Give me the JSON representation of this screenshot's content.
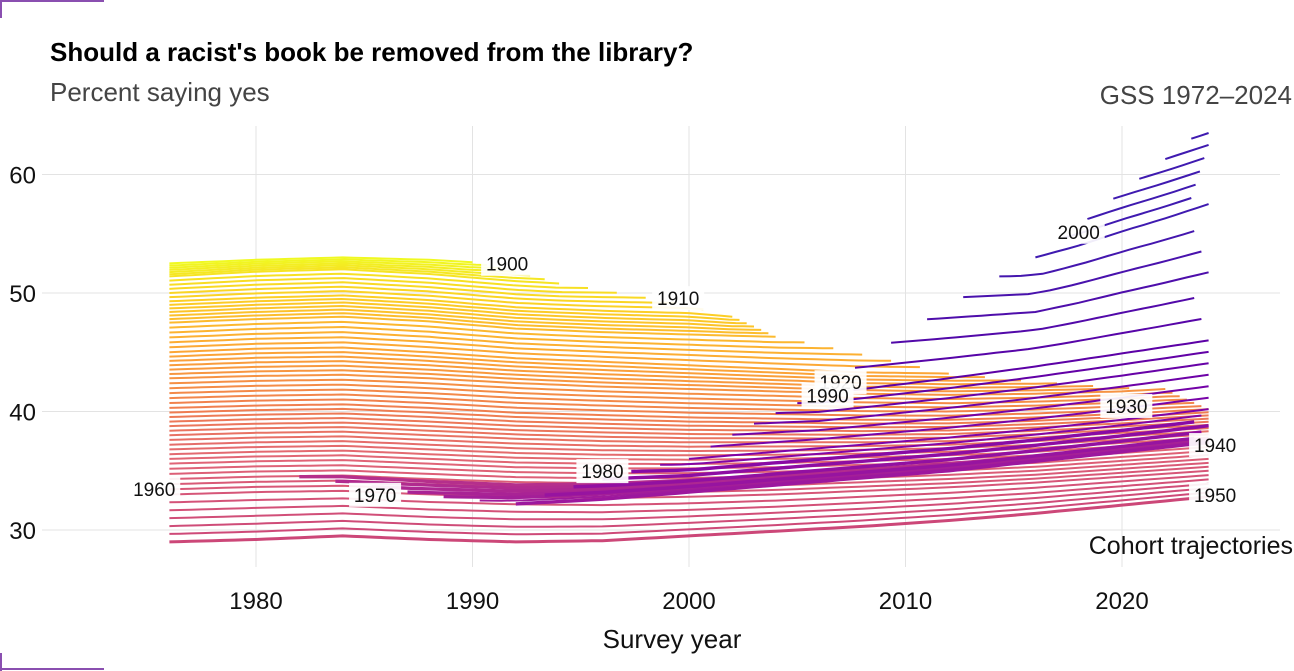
{
  "chart_data": {
    "type": "line",
    "title": "Should a racist's book be removed from the library?",
    "subtitle": "Percent saying yes",
    "source_note": "GSS 1972–2024",
    "caption": "Cohort trajectories",
    "xlabel": "Survey year",
    "ylabel": "",
    "xlim": [
      1972,
      2026
    ],
    "ylim": [
      26,
      64
    ],
    "x_ticks": [
      1980,
      1990,
      2000,
      2010,
      2020
    ],
    "y_ticks": [
      30,
      40,
      50,
      60
    ],
    "grid": true,
    "legend": "none",
    "colors": {
      "yellow": "#f0f921",
      "orange": "#fdb42f",
      "salmon": "#f08c5a",
      "pink": "#e06477",
      "magenta": "#b52f8c",
      "purple": "#7e03a8",
      "indigo": "#3f1ab0"
    },
    "cohort_labels": [
      {
        "text": "1900",
        "x": 1991.6,
        "y": 52.3
      },
      {
        "text": "1910",
        "x": 1999.5,
        "y": 49.4
      },
      {
        "text": "1920",
        "x": 2007.0,
        "y": 42.3
      },
      {
        "text": "1930",
        "x": 2020.2,
        "y": 40.3
      },
      {
        "text": "1940",
        "x": 2024.3,
        "y": 37.0
      },
      {
        "text": "1950",
        "x": 2024.3,
        "y": 32.8
      },
      {
        "text": "1960",
        "x": 1975.3,
        "y": 33.3
      },
      {
        "text": "1970",
        "x": 1985.5,
        "y": 32.8
      },
      {
        "text": "1980",
        "x": 1996.0,
        "y": 34.8
      },
      {
        "text": "1990",
        "x": 2006.4,
        "y": 41.2
      },
      {
        "text": "2000",
        "x": 2018.0,
        "y": 55.0
      }
    ],
    "series": [
      {
        "cohort": 1900,
        "x": [
          1976,
          1980,
          1984,
          1988,
          1990
        ],
        "y": [
          52.5,
          52.8,
          53.0,
          52.8,
          52.6
        ]
      },
      {
        "cohort": 1905,
        "x": [
          1976,
          1980,
          1984,
          1988,
          1992,
          1994
        ],
        "y": [
          51.4,
          51.8,
          52.0,
          51.6,
          51.0,
          50.8
        ]
      },
      {
        "cohort": 1910,
        "x": [
          1976,
          1980,
          1984,
          1988,
          1992,
          1996,
          2000,
          2002
        ],
        "y": [
          49.3,
          49.6,
          49.8,
          49.4,
          48.8,
          48.5,
          48.3,
          48.0
        ]
      },
      {
        "cohort": 1915,
        "x": [
          1976,
          1980,
          1984,
          1988,
          1992,
          1996,
          2000,
          2004
        ],
        "y": [
          47.5,
          47.8,
          48.0,
          47.6,
          47.0,
          46.7,
          46.5,
          46.3
        ]
      },
      {
        "cohort": 1920,
        "x": [
          1976,
          1980,
          1984,
          1988,
          1992,
          1996,
          2000,
          2004,
          2008,
          2012
        ],
        "y": [
          45.0,
          45.3,
          45.4,
          45.0,
          44.5,
          44.2,
          43.9,
          43.6,
          43.3,
          43.2
        ]
      },
      {
        "cohort": 1925,
        "x": [
          1976,
          1980,
          1984,
          1988,
          1992,
          1996,
          2000,
          2004,
          2008,
          2012,
          2016,
          2020,
          2022
        ],
        "y": [
          42.8,
          43.0,
          43.1,
          42.8,
          42.4,
          42.1,
          41.9,
          41.7,
          41.5,
          41.4,
          41.5,
          41.7,
          41.9
        ]
      },
      {
        "cohort": 1930,
        "x": [
          1976,
          1980,
          1984,
          1988,
          1992,
          1996,
          2000,
          2004,
          2008,
          2012,
          2016,
          2020,
          2024
        ],
        "y": [
          40.3,
          40.5,
          40.6,
          40.3,
          39.9,
          39.7,
          39.5,
          39.4,
          39.3,
          39.3,
          39.5,
          39.8,
          40.2
        ]
      },
      {
        "cohort": 1935,
        "x": [
          1976,
          1980,
          1984,
          1988,
          1992,
          1996,
          2000,
          2004,
          2008,
          2012,
          2016,
          2020,
          2024
        ],
        "y": [
          38.0,
          38.2,
          38.3,
          38.0,
          37.7,
          37.5,
          37.4,
          37.4,
          37.4,
          37.5,
          37.8,
          38.2,
          38.6
        ]
      },
      {
        "cohort": 1940,
        "x": [
          1976,
          1980,
          1984,
          1988,
          1992,
          1996,
          2000,
          2004,
          2008,
          2012,
          2016,
          2020,
          2024
        ],
        "y": [
          35.6,
          35.8,
          35.9,
          35.6,
          35.3,
          35.2,
          35.2,
          35.3,
          35.5,
          35.7,
          36.0,
          36.5,
          37.0
        ]
      },
      {
        "cohort": 1945,
        "x": [
          1976,
          1980,
          1984,
          1988,
          1992,
          1996,
          2000,
          2004,
          2008,
          2012,
          2016,
          2020,
          2024
        ],
        "y": [
          33.0,
          33.2,
          33.3,
          33.0,
          32.8,
          32.7,
          32.8,
          33.0,
          33.3,
          33.6,
          34.0,
          34.5,
          35.0
        ]
      },
      {
        "cohort": 1950,
        "x": [
          1976,
          1980,
          1984,
          1988,
          1992,
          1996,
          2000,
          2004,
          2008,
          2012,
          2016,
          2020,
          2024
        ],
        "y": [
          29.0,
          29.2,
          29.5,
          29.2,
          29.0,
          29.1,
          29.5,
          29.9,
          30.3,
          30.8,
          31.4,
          32.1,
          32.8
        ]
      },
      {
        "cohort": 1960,
        "x": [
          1982,
          1984,
          1988,
          1992,
          1996,
          2000,
          2004,
          2008,
          2012,
          2016,
          2020,
          2024
        ],
        "y": [
          34.5,
          34.5,
          34.1,
          33.8,
          33.9,
          34.2,
          34.6,
          35.1,
          35.6,
          36.2,
          36.9,
          37.7
        ]
      },
      {
        "cohort": 1970,
        "x": [
          1992,
          1996,
          2000,
          2004,
          2008,
          2012,
          2016,
          2020,
          2024
        ],
        "y": [
          32.2,
          32.6,
          33.2,
          33.8,
          34.4,
          35.0,
          35.8,
          36.6,
          37.4
        ]
      },
      {
        "cohort": 1980,
        "x": [
          2000,
          2004,
          2008,
          2012,
          2016,
          2020,
          2024
        ],
        "y": [
          36.0,
          36.6,
          37.2,
          37.8,
          38.5,
          39.3,
          40.2
        ]
      },
      {
        "cohort": 1990,
        "x": [
          2006,
          2008,
          2012,
          2016,
          2020,
          2024
        ],
        "y": [
          41.5,
          41.9,
          42.8,
          43.8,
          44.9,
          46.0
        ]
      },
      {
        "cohort": 2000,
        "x": [
          2016,
          2018,
          2020,
          2022,
          2024
        ],
        "y": [
          53.0,
          54.0,
          55.2,
          56.3,
          57.5
        ]
      }
    ]
  }
}
